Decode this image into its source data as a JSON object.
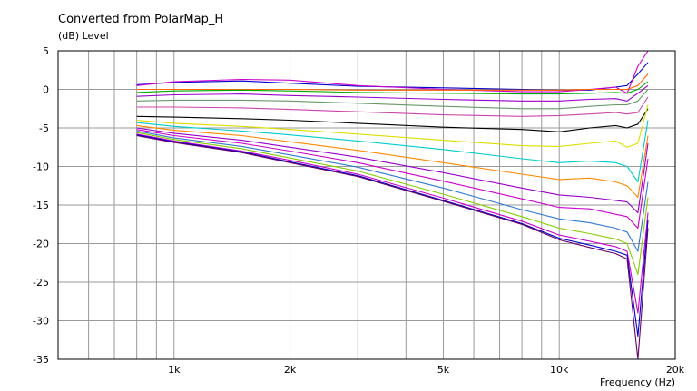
{
  "chart_data": {
    "type": "line",
    "title": "Converted from PolarMap_H",
    "ylabel": "(dB)  Level",
    "xlabel": "Frequency  (Hz)",
    "x_scale": "log",
    "xlim": [
      500,
      20000
    ],
    "ylim": [
      -35,
      5
    ],
    "x_ticks": [
      {
        "value": 1000,
        "label": "1k"
      },
      {
        "value": 2000,
        "label": "2k"
      },
      {
        "value": 5000,
        "label": "5k"
      },
      {
        "value": 10000,
        "label": "10k"
      },
      {
        "value": 20000,
        "label": "20k"
      }
    ],
    "y_ticks": [
      5,
      0,
      -5,
      -10,
      -15,
      -20,
      -25,
      -30,
      -35
    ],
    "x_minor_gridlines": [
      600,
      700,
      800,
      900,
      1000,
      2000,
      3000,
      4000,
      5000,
      6000,
      7000,
      8000,
      9000,
      10000
    ],
    "grid": true,
    "x": [
      800,
      1000,
      1500,
      2000,
      3000,
      5000,
      8000,
      10000,
      12000,
      14000,
      15000,
      16000,
      17000
    ],
    "series": [
      {
        "color": "#0000cc",
        "values": [
          0.6,
          0.9,
          1.1,
          0.8,
          0.4,
          0.2,
          0.0,
          -0.1,
          -0.1,
          0.3,
          0.5,
          2.0,
          3.5
        ]
      },
      {
        "color": "#cc00cc",
        "values": [
          0.5,
          1.0,
          1.3,
          1.2,
          0.5,
          0.0,
          -0.3,
          -0.3,
          0.0,
          0.3,
          -0.5,
          3.0,
          5.0
        ]
      },
      {
        "color": "#ff6600",
        "values": [
          0.0,
          0.0,
          0.0,
          0.0,
          -0.1,
          -0.1,
          -0.1,
          -0.1,
          0.0,
          0.0,
          0.0,
          0.5,
          2.0
        ]
      },
      {
        "color": "#00aa00",
        "values": [
          -0.4,
          -0.2,
          -0.1,
          -0.2,
          -0.4,
          -0.5,
          -0.6,
          -0.6,
          -0.5,
          -0.4,
          -0.5,
          0.0,
          1.0
        ]
      },
      {
        "color": "#9900cc",
        "values": [
          -0.9,
          -0.7,
          -0.6,
          -0.8,
          -1.0,
          -1.3,
          -1.5,
          -1.5,
          -1.3,
          -1.2,
          -1.5,
          -0.5,
          0.5
        ]
      },
      {
        "color": "#669966",
        "values": [
          -1.5,
          -1.4,
          -1.4,
          -1.5,
          -1.8,
          -2.2,
          -2.5,
          -2.5,
          -2.2,
          -2.0,
          -2.0,
          -1.5,
          0.0
        ]
      },
      {
        "color": "#cc44aa",
        "values": [
          -2.3,
          -2.3,
          -2.4,
          -2.6,
          -2.9,
          -3.3,
          -3.5,
          -3.4,
          -3.2,
          -3.0,
          -3.2,
          -3.0,
          -1.0
        ]
      },
      {
        "color": "#000000",
        "values": [
          -3.5,
          -3.6,
          -3.8,
          -4.0,
          -4.4,
          -4.9,
          -5.2,
          -5.5,
          -5.0,
          -4.7,
          -5.0,
          -4.5,
          -2.5
        ]
      },
      {
        "color": "#dddd00",
        "values": [
          -4.0,
          -4.4,
          -4.8,
          -5.2,
          -5.8,
          -6.6,
          -7.3,
          -7.4,
          -7.0,
          -6.7,
          -7.5,
          -7.0,
          -2.0
        ]
      },
      {
        "color": "#00cccc",
        "values": [
          -4.3,
          -4.8,
          -5.4,
          -5.9,
          -6.7,
          -7.8,
          -9.0,
          -9.5,
          -9.3,
          -9.5,
          -10.0,
          -12.0,
          -4.0
        ]
      },
      {
        "color": "#ff8800",
        "values": [
          -4.7,
          -5.3,
          -6.0,
          -6.8,
          -7.9,
          -9.5,
          -11.0,
          -11.7,
          -11.5,
          -12.0,
          -12.5,
          -14.0,
          -6.0
        ]
      },
      {
        "color": "#9900cc",
        "values": [
          -5.0,
          -5.7,
          -6.6,
          -7.5,
          -8.8,
          -10.8,
          -12.8,
          -13.7,
          -14.0,
          -14.4,
          -14.6,
          -16.0,
          -7.0
        ]
      },
      {
        "color": "#cc00cc",
        "values": [
          -5.2,
          -6.0,
          -7.0,
          -8.0,
          -9.5,
          -11.9,
          -14.2,
          -15.3,
          -15.5,
          -16.2,
          -16.5,
          -18.0,
          -9.0
        ]
      },
      {
        "color": "#3377cc",
        "values": [
          -5.4,
          -6.3,
          -7.4,
          -8.5,
          -10.1,
          -12.8,
          -15.6,
          -16.8,
          -17.3,
          -18.0,
          -18.5,
          -21.0,
          -12.0
        ]
      },
      {
        "color": "#88cc00",
        "values": [
          -5.6,
          -6.5,
          -7.7,
          -8.9,
          -10.6,
          -13.6,
          -16.5,
          -18.0,
          -18.7,
          -19.4,
          -20.0,
          -24.0,
          -14.0
        ]
      },
      {
        "color": "#cc00cc",
        "values": [
          -5.8,
          -6.7,
          -8.0,
          -9.2,
          -11.0,
          -14.1,
          -17.1,
          -18.9,
          -19.7,
          -20.4,
          -21.0,
          -29.0,
          -16.0
        ]
      },
      {
        "color": "#0000cc",
        "values": [
          -5.9,
          -6.8,
          -8.1,
          -9.4,
          -11.2,
          -14.4,
          -17.4,
          -19.3,
          -20.2,
          -21.0,
          -21.5,
          -32.0,
          -17.0
        ]
      },
      {
        "color": "#660066",
        "values": [
          -6.0,
          -6.9,
          -8.2,
          -9.5,
          -11.3,
          -14.5,
          -17.5,
          -19.5,
          -20.5,
          -21.3,
          -22.0,
          -35.0,
          -18.0
        ]
      }
    ]
  }
}
